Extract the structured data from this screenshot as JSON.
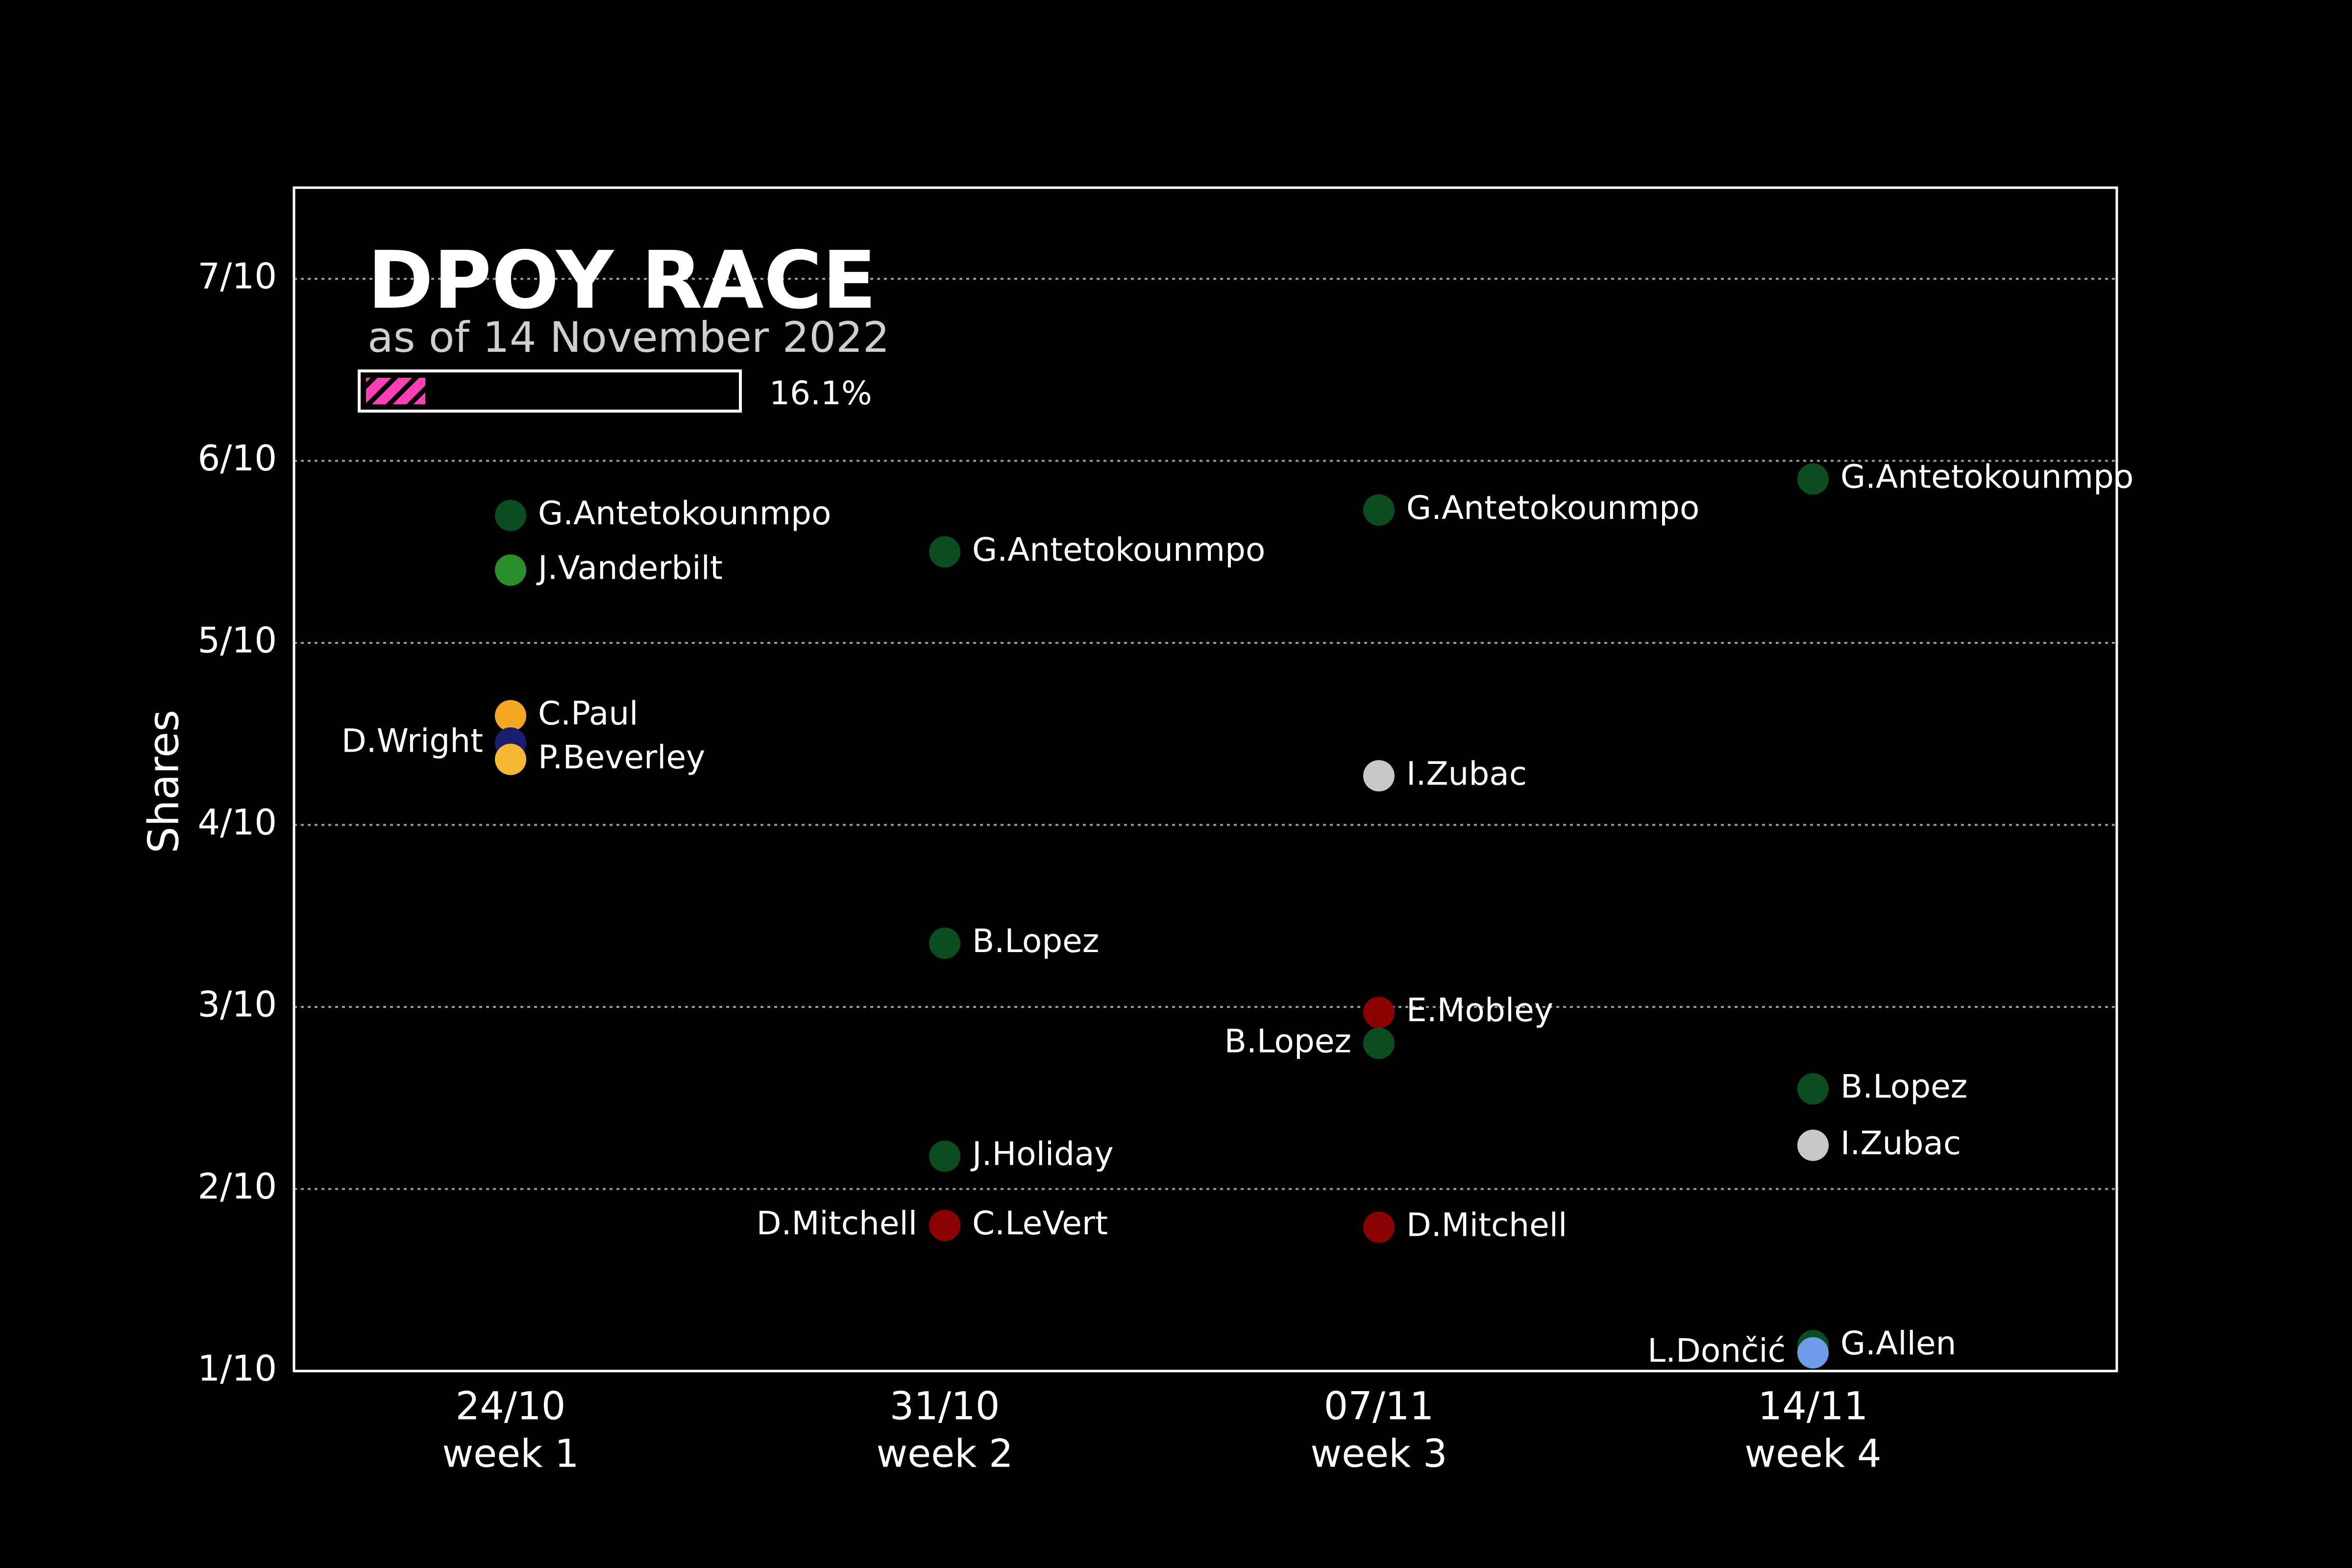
{
  "chart_data": {
    "type": "scatter",
    "title": "DPOY RACE",
    "subtitle": "as of 14 November 2022",
    "progress": {
      "value": 0.161,
      "label": "16.1%",
      "color": "#ff3fb3"
    },
    "ylabel": "Shares",
    "ylim": [
      1,
      7.5
    ],
    "y_ticks": [
      {
        "value": 1,
        "label": "1/10"
      },
      {
        "value": 2,
        "label": "2/10"
      },
      {
        "value": 3,
        "label": "3/10"
      },
      {
        "value": 4,
        "label": "4/10"
      },
      {
        "value": 5,
        "label": "5/10"
      },
      {
        "value": 6,
        "label": "6/10"
      },
      {
        "value": 7,
        "label": "7/10"
      }
    ],
    "grid": true,
    "categories": [
      {
        "date": "24/10",
        "week": "week 1"
      },
      {
        "date": "31/10",
        "week": "week 2"
      },
      {
        "date": "07/11",
        "week": "week 3"
      },
      {
        "date": "14/11",
        "week": "week 4"
      }
    ],
    "points": [
      {
        "week": 0,
        "y": 5.7,
        "label": "G.Antetokounmpo",
        "color": "#0b4d1f",
        "side": "right"
      },
      {
        "week": 0,
        "y": 5.4,
        "label": "J.Vanderbilt",
        "color": "#2a8f2a",
        "side": "right"
      },
      {
        "week": 0,
        "y": 4.6,
        "label": "C.Paul",
        "color": "#f5a623",
        "side": "right"
      },
      {
        "week": 0,
        "y": 4.45,
        "label": "D.Wright",
        "color": "#1a1e6e",
        "side": "left"
      },
      {
        "week": 0,
        "y": 4.36,
        "label": "P.Beverley",
        "color": "#f7b733",
        "side": "right"
      },
      {
        "week": 1,
        "y": 5.5,
        "label": "G.Antetokounmpo",
        "color": "#0b4d1f",
        "side": "right"
      },
      {
        "week": 1,
        "y": 3.35,
        "label": "B.Lopez",
        "color": "#0b4d1f",
        "side": "right"
      },
      {
        "week": 1,
        "y": 2.18,
        "label": "J.Holiday",
        "color": "#0b4d1f",
        "side": "right"
      },
      {
        "week": 1,
        "y": 1.8,
        "label": "D.Mitchell",
        "color": "#8b0000",
        "side": "left"
      },
      {
        "week": 1,
        "y": 1.8,
        "label": "C.LeVert",
        "color": "#8b0000",
        "side": "right"
      },
      {
        "week": 2,
        "y": 5.73,
        "label": "G.Antetokounmpo",
        "color": "#0b4d1f",
        "side": "right"
      },
      {
        "week": 2,
        "y": 4.27,
        "label": "I.Zubac",
        "color": "#c8c8c8",
        "side": "right"
      },
      {
        "week": 2,
        "y": 2.97,
        "label": "E.Mobley",
        "color": "#8b0000",
        "side": "right"
      },
      {
        "week": 2,
        "y": 2.8,
        "label": "B.Lopez",
        "color": "#0b4d1f",
        "side": "left"
      },
      {
        "week": 2,
        "y": 1.79,
        "label": "D.Mitchell",
        "color": "#8b0000",
        "side": "right"
      },
      {
        "week": 3,
        "y": 5.9,
        "label": "G.Antetokounmpo",
        "color": "#0b4d1f",
        "side": "right"
      },
      {
        "week": 3,
        "y": 2.55,
        "label": "B.Lopez",
        "color": "#0b4d1f",
        "side": "right"
      },
      {
        "week": 3,
        "y": 2.24,
        "label": "I.Zubac",
        "color": "#c8c8c8",
        "side": "right"
      },
      {
        "week": 3,
        "y": 1.14,
        "label": "G.Allen",
        "color": "#0b4d1f",
        "side": "right"
      },
      {
        "week": 3,
        "y": 1.1,
        "label": "L.Dončić",
        "color": "#6f9be8",
        "side": "left"
      }
    ]
  }
}
